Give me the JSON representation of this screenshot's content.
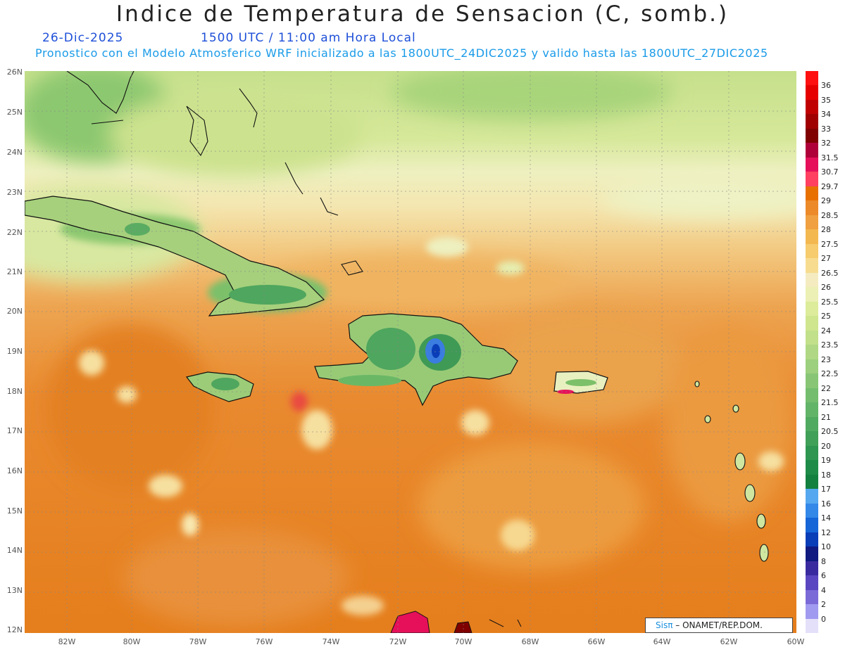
{
  "header": {
    "title": "Indice de Temperatura de Sensacion (C, somb.)",
    "date": "26-Dic-2025",
    "time": "1500 UTC / 11:00 am Hora Local",
    "forecast": "Pronostico con el Modelo Atmosferico WRF inicializado a las 1800UTC_24DIC2025 y valido hasta las  1800UTC_27DIC2025"
  },
  "axes": {
    "lat_labels": [
      "26N",
      "25N",
      "24N",
      "23N",
      "22N",
      "21N",
      "20N",
      "19N",
      "18N",
      "17N",
      "16N",
      "15N",
      "14N",
      "13N",
      "12N"
    ],
    "lon_labels": [
      "82W",
      "80W",
      "78W",
      "76W",
      "74W",
      "72W",
      "70W",
      "68W",
      "66W",
      "64W",
      "62W",
      "60W"
    ]
  },
  "colorbar": {
    "levels": [
      "36",
      "35",
      "34",
      "33",
      "32",
      "31.5",
      "30.7",
      "29.7",
      "29",
      "28.5",
      "28",
      "27.5",
      "27",
      "26.5",
      "26",
      "25.5",
      "25",
      "24",
      "23.5",
      "23",
      "22.5",
      "22",
      "21.5",
      "21",
      "20.5",
      "20",
      "19",
      "18",
      "17",
      "16",
      "14",
      "12",
      "10",
      "8",
      "6",
      "4",
      "2",
      "0"
    ],
    "colors": [
      "#ff1010",
      "#e60000",
      "#c00000",
      "#a00000",
      "#800000",
      "#b0003a",
      "#e6105a",
      "#ff4060",
      "#e87000",
      "#ec8a2a",
      "#f0a040",
      "#f4b850",
      "#f6cc6e",
      "#f7dc90",
      "#f4ecc0",
      "#ecf0b4",
      "#dcec9a",
      "#cfe68e",
      "#c2e08a",
      "#b0d884",
      "#9ccf7e",
      "#88c676",
      "#74bd6e",
      "#62b468",
      "#50aa60",
      "#40a058",
      "#2e9650",
      "#1e8c48",
      "#138040",
      "#55a8f0",
      "#3388e8",
      "#1666d8",
      "#0a3db8",
      "#101a80",
      "#3a2aa0",
      "#5a46c0",
      "#7a6ad8",
      "#a09af0",
      "#e4e0fa"
    ]
  },
  "credit": {
    "brand": "Sisπ",
    "org": "– ONAMET/REP.DOM."
  }
}
